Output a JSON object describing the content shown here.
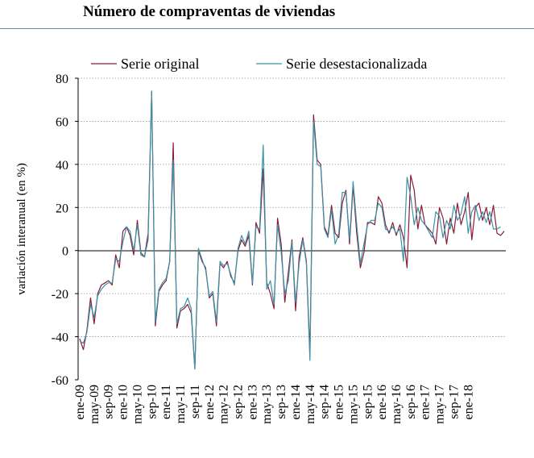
{
  "chart_data": {
    "type": "line",
    "title": "Número de compraventas de viviendas",
    "ylabel": "variación interanual (en %)",
    "xlabel": "",
    "ylim": [
      -60,
      80
    ],
    "yticks": [
      -60,
      -40,
      -20,
      0,
      20,
      40,
      60,
      80
    ],
    "grid": "horizontal dotted",
    "legend_position": "top",
    "x_tick_labels": [
      "ene-09",
      "may-09",
      "sep-09",
      "ene-10",
      "may-10",
      "sep-10",
      "ene-11",
      "may-11",
      "sep-11",
      "ene-12",
      "may-12",
      "sep-12",
      "ene-13",
      "may-13",
      "sep-13",
      "ene-14",
      "may-14",
      "sep-14",
      "ene-15",
      "may-15",
      "sep-15",
      "ene-16",
      "may-16",
      "sep-16",
      "ene-17",
      "may-17",
      "sep-17",
      "ene-18"
    ],
    "x_start": "ene-09",
    "x_end": "feb-18",
    "series": [
      {
        "name": "Serie original",
        "color": "#8b1a3a",
        "values": [
          -41,
          -46,
          -37,
          -22,
          -34,
          -20,
          -16,
          -15,
          -14,
          -16,
          -2,
          -8,
          9,
          11,
          7,
          -2,
          14,
          -1,
          -3,
          8,
          74,
          -35,
          -19,
          -16,
          -14,
          -5,
          50,
          -36,
          -28,
          -27,
          -25,
          -29,
          -55,
          0,
          -5,
          -8,
          -22,
          -20,
          -35,
          -6,
          -8,
          -5,
          -12,
          -15,
          0,
          5,
          2,
          7,
          -16,
          13,
          8,
          38,
          -15,
          -20,
          -27,
          15,
          3,
          -24,
          -10,
          5,
          -28,
          -3,
          6,
          -5,
          -48,
          63,
          42,
          40,
          11,
          7,
          21,
          8,
          6,
          22,
          28,
          3,
          30,
          8,
          -8,
          -1,
          13,
          13,
          12,
          25,
          22,
          12,
          8,
          13,
          7,
          12,
          6,
          -8,
          35,
          28,
          10,
          21,
          12,
          10,
          8,
          3,
          20,
          15,
          3,
          15,
          8,
          22,
          12,
          18,
          27,
          5,
          20,
          22,
          14,
          20,
          12,
          21,
          8,
          7,
          9
        ]
      },
      {
        "name": "Serie desestacionalizada",
        "color": "#3a93a6",
        "values": [
          -42,
          -43,
          -38,
          -25,
          -31,
          -21,
          -18,
          -16,
          -15,
          -15,
          -4,
          -5,
          4,
          11,
          9,
          0,
          12,
          -2,
          -3,
          5,
          74,
          -33,
          -18,
          -15,
          -13,
          -5,
          42,
          -34,
          -27,
          -26,
          -22,
          -27,
          -55,
          1,
          -4,
          -9,
          -21,
          -19,
          -33,
          -5,
          -7,
          -6,
          -11,
          -16,
          1,
          7,
          3,
          9,
          -15,
          11,
          10,
          49,
          -18,
          -14,
          -25,
          12,
          -1,
          -20,
          -14,
          4,
          -24,
          -6,
          5,
          -6,
          -51,
          60,
          40,
          39,
          10,
          6,
          19,
          3,
          8,
          27,
          27,
          5,
          32,
          12,
          -6,
          3,
          12,
          14,
          14,
          22,
          20,
          10,
          9,
          11,
          8,
          10,
          -5,
          34,
          25,
          12,
          20,
          14,
          12,
          9,
          6,
          18,
          16,
          6,
          14,
          10,
          21,
          14,
          17,
          25,
          8,
          18,
          21,
          14,
          18,
          13,
          18,
          10,
          10,
          11
        ]
      }
    ]
  }
}
